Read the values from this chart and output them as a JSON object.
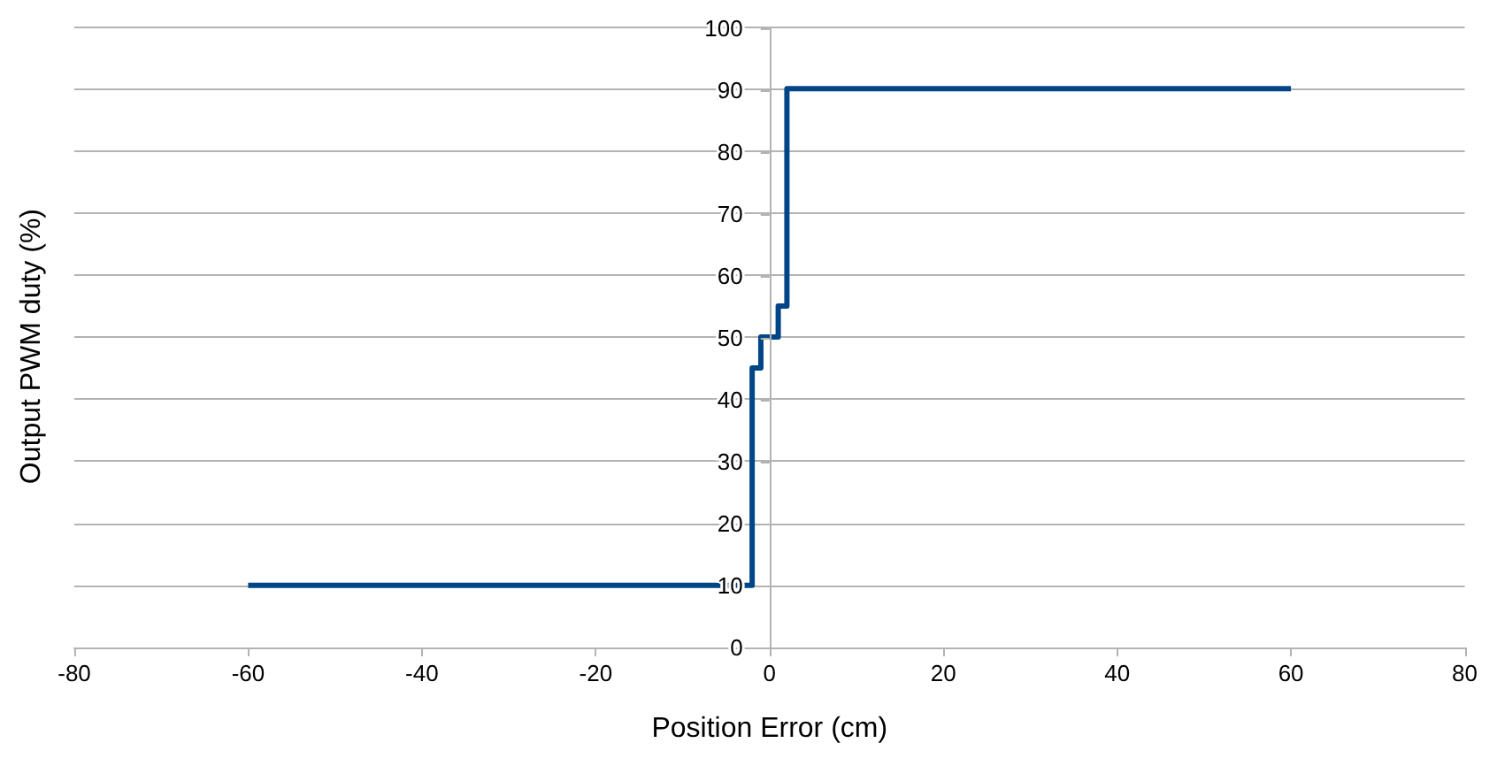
{
  "chart_data": {
    "type": "step",
    "xlabel": "Position Error (cm)",
    "ylabel": "Output PWM duty (%)",
    "x": [
      -60,
      -2,
      -1,
      1,
      2,
      60
    ],
    "series": [
      {
        "color": "#004586",
        "values": [
          10,
          45,
          50,
          55,
          90,
          90
        ]
      }
    ],
    "xlim": [
      -80,
      80
    ],
    "xticks": [
      -80,
      -60,
      -40,
      -20,
      0,
      20,
      40,
      60,
      80
    ],
    "ylim": [
      0,
      100
    ],
    "yticks": [
      0,
      10,
      20,
      30,
      40,
      50,
      60,
      70,
      80,
      90,
      100
    ],
    "grid": "y",
    "marker": "none",
    "line_style": "solid"
  }
}
